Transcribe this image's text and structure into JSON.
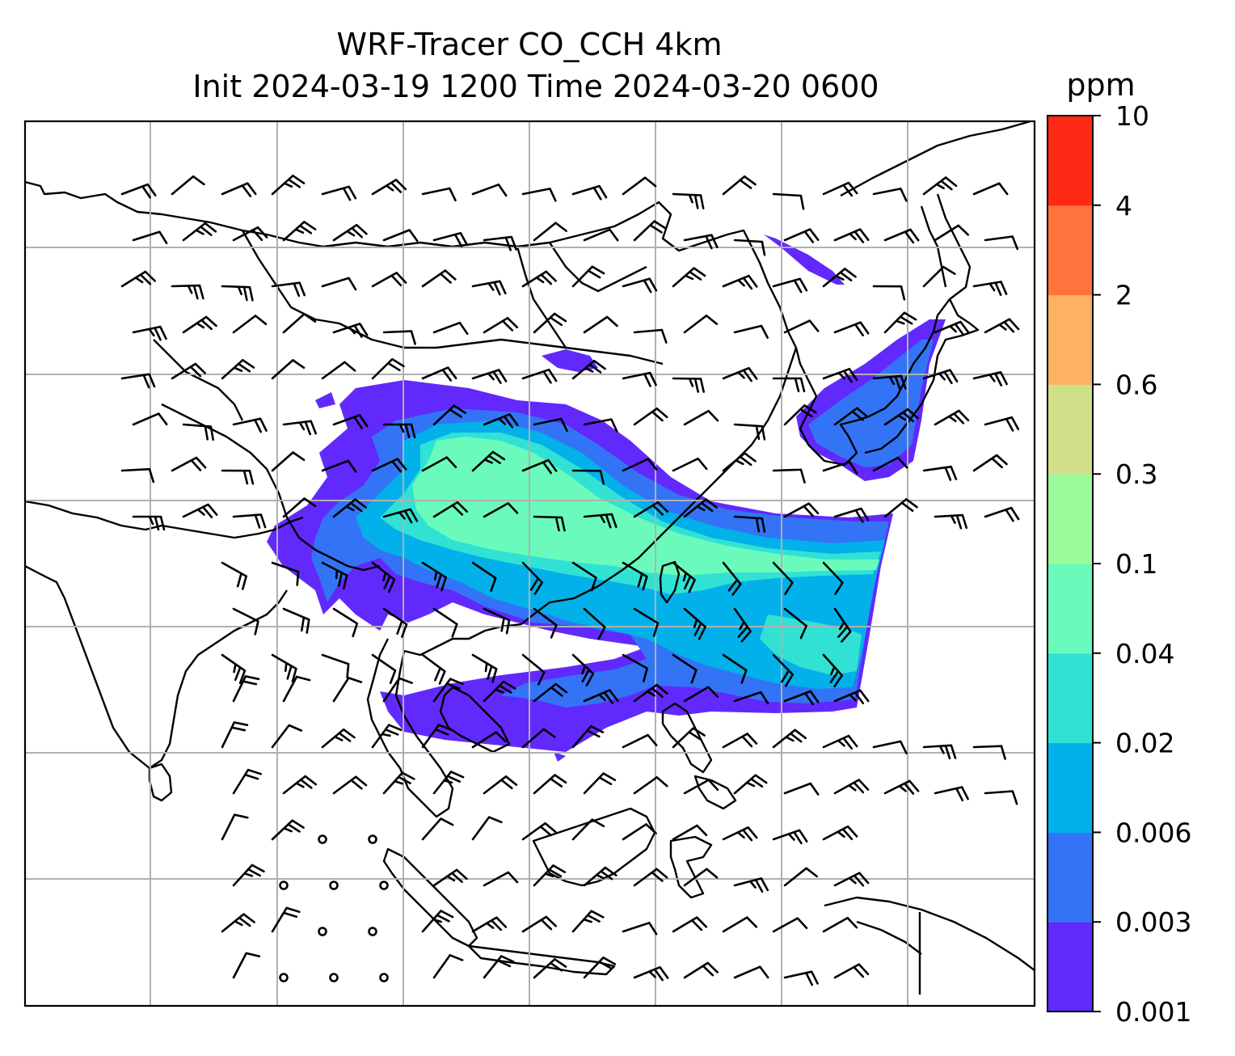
{
  "title": {
    "line1": "WRF-Tracer CO_CCH 4km",
    "line2": "Init 2024-03-19 1200 Time 2024-03-20 0600"
  },
  "map": {
    "variable": "CO_CCH",
    "grid": "on",
    "wind_barbs": "on",
    "land_color": "#ffffff",
    "coastline_color": "#000000",
    "grid_color": "#b0b0b0"
  },
  "colorbar": {
    "unit": "ppm",
    "ticks": [
      "0.001",
      "0.003",
      "0.006",
      "0.02",
      "0.04",
      "0.1",
      "0.3",
      "0.6",
      "2",
      "4",
      "10"
    ],
    "colors": [
      "#6229fc",
      "#3374f6",
      "#03b1ea",
      "#31e2d4",
      "#6afbbc",
      "#9bfb9a",
      "#d0e088",
      "#fdb162",
      "#ff733d",
      "#ff2a15"
    ]
  }
}
